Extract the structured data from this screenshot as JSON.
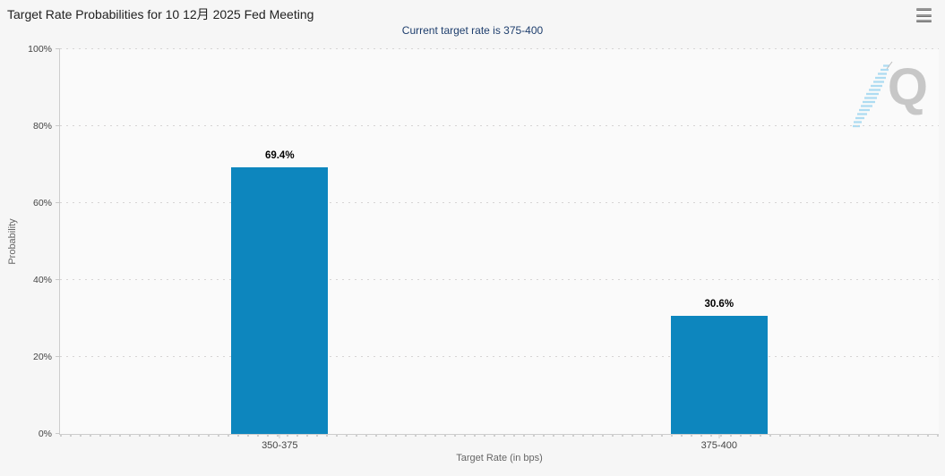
{
  "header": {
    "title": "Target Rate Probabilities for 10 12月 2025 Fed Meeting",
    "subtitle": "Current target rate is 375-400",
    "menu_tooltip": "Chart context menu"
  },
  "watermark": {
    "letter": "Q"
  },
  "colors": {
    "bar": "#0d86be",
    "subtitle_text": "#1e3e6d",
    "title_text": "#222222",
    "axis_text": "#444444",
    "axis_title_text": "#666666",
    "grid": "#d6d4d4",
    "background": "#f6f6f6",
    "watermark_gray": "#c7c7c7",
    "watermark_blue": "#aedcf2"
  },
  "chart_data": {
    "type": "bar",
    "title": "Target Rate Probabilities for 10 12月 2025 Fed Meeting",
    "subtitle": "Current target rate is 375-400",
    "categories": [
      "350-375",
      "375-400"
    ],
    "values": [
      69.4,
      30.6
    ],
    "value_labels": [
      "69.4%",
      "30.6%"
    ],
    "xlabel": "Target Rate (in bps)",
    "ylabel": "Probability",
    "ylim": [
      0,
      100
    ],
    "ytick_values": [
      0,
      20,
      40,
      60,
      80,
      100
    ],
    "ytick_labels": [
      "0%",
      "20%",
      "40%",
      "60%",
      "80%",
      "100%"
    ],
    "grid": "dotted-horizontal",
    "legend": "none",
    "bar_color": "#0d86be"
  }
}
